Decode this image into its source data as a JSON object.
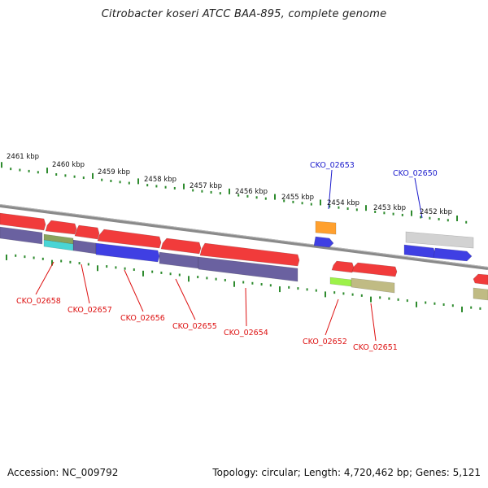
{
  "title": "Citrobacter koseri ATCC BAA-895, complete genome",
  "footer": {
    "accession": "Accession: NC_009792",
    "summary": "Topology: circular; Length: 4,720,462 bp; Genes: 5,121"
  },
  "colors": {
    "backbone": "#8a8a8a",
    "tick": "#2e8b2e",
    "forward_label": "#1a1acc",
    "reverse_label": "#dd1111",
    "red": "#ee1111",
    "blue": "#1515dd",
    "navy": "#4a3f8c",
    "orange": "#ff8c00",
    "grey": "#c8c8c8",
    "olive": "#b3ad6a",
    "teal": "#22cccc",
    "olive_green": "#6f8f3a",
    "lime": "#88ee22"
  },
  "kbp_labels": [
    "2461 kbp",
    "2460 kbp",
    "2459 kbp",
    "2458 kbp",
    "2457 kbp",
    "2456 kbp",
    "2455 kbp",
    "2454 kbp",
    "2453 kbp",
    "2452 kbp"
  ],
  "forward_labels": [
    "CKO_02653",
    "CKO_02650"
  ],
  "reverse_labels": [
    "CKO_02658",
    "CKO_02657",
    "CKO_02656",
    "CKO_02655",
    "CKO_02654",
    "CKO_02652",
    "CKO_02651"
  ]
}
